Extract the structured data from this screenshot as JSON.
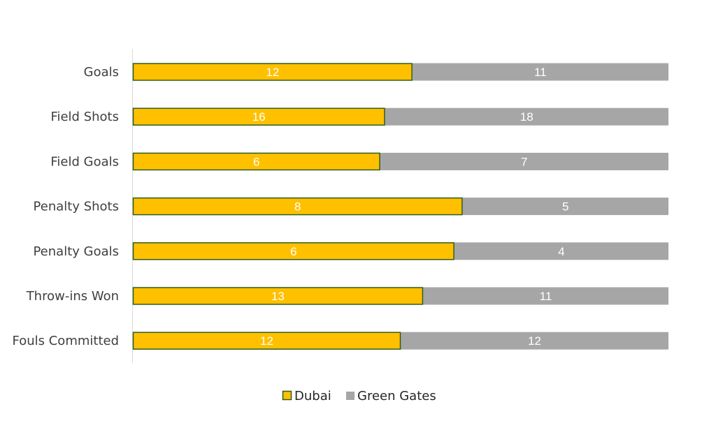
{
  "chart_data": {
    "type": "bar",
    "orientation": "horizontal",
    "stacking": "percent",
    "categories": [
      "Goals",
      "Field Shots",
      "Field Goals",
      "Penalty Shots",
      "Penalty Goals",
      "Throw-ins Won",
      "Fouls Committed"
    ],
    "series": [
      {
        "name": "Dubai",
        "values": [
          12,
          16,
          6,
          8,
          6,
          13,
          12
        ],
        "color": "#FFC000",
        "border_color": "#2E5E1E"
      },
      {
        "name": "Green Gates",
        "values": [
          11,
          18,
          7,
          5,
          4,
          11,
          12
        ],
        "color": "#A6A6A6"
      }
    ],
    "data_labels": true,
    "grid": false,
    "legend": "bottom",
    "title": "",
    "xlabel": "",
    "ylabel": ""
  }
}
